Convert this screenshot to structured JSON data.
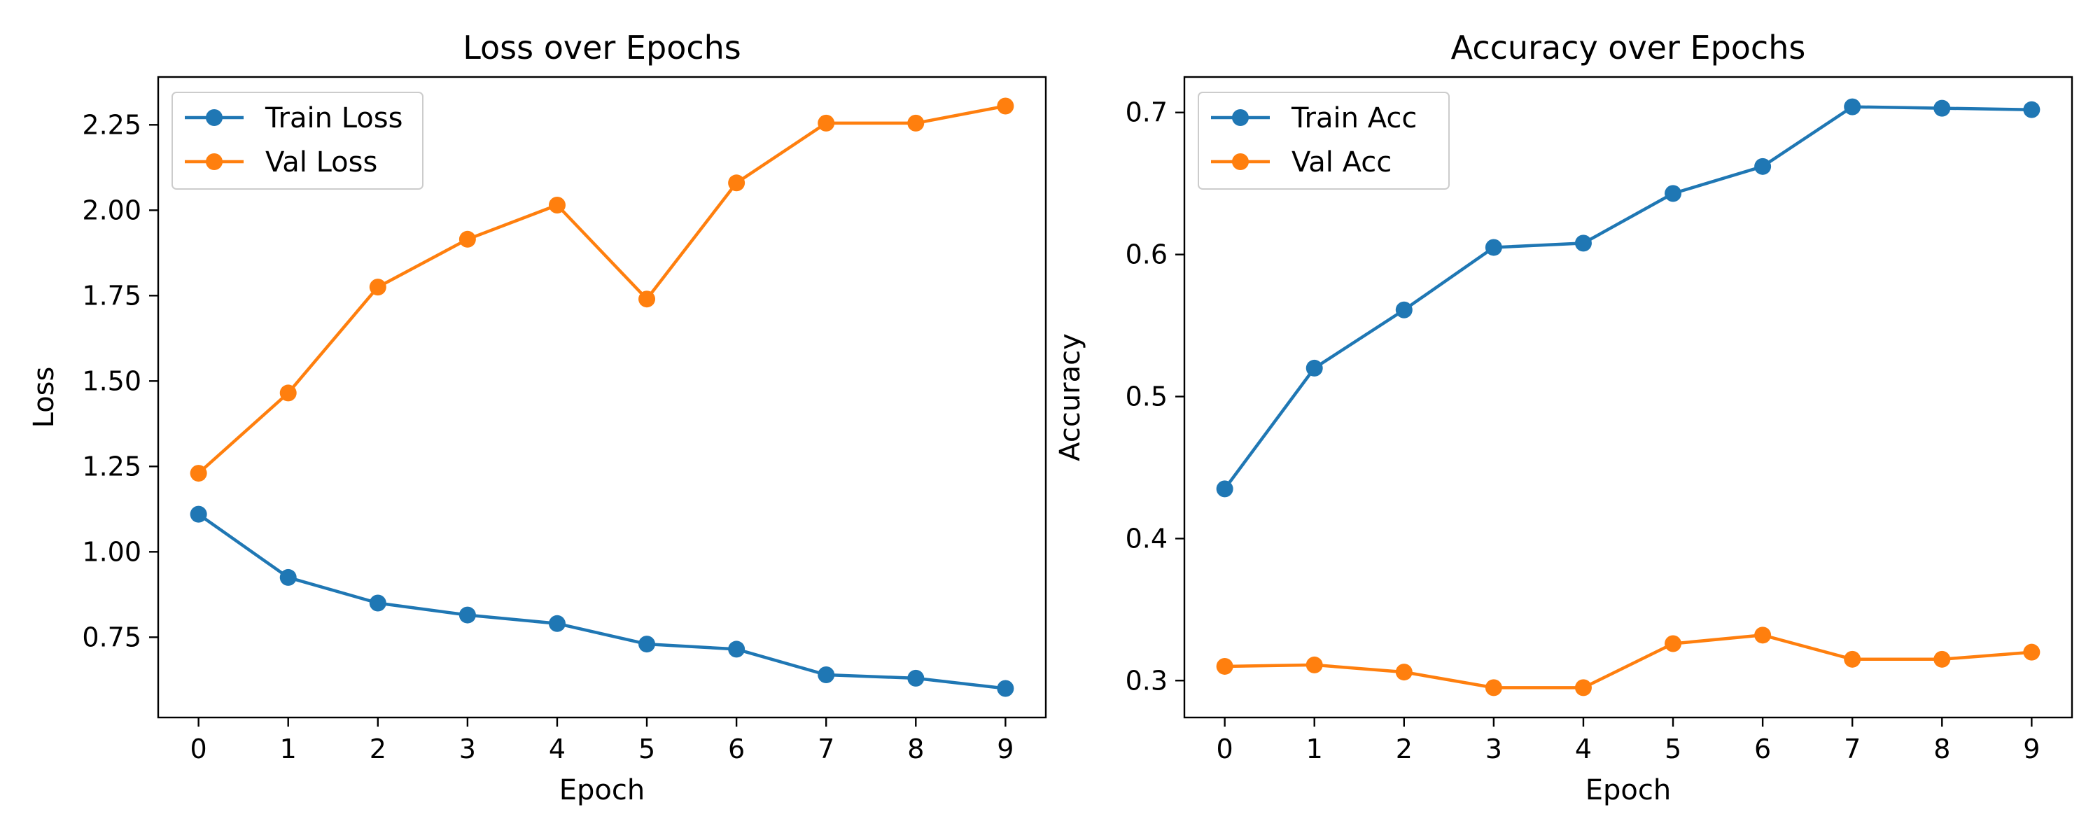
{
  "chart_data": [
    {
      "type": "line",
      "title": "Loss over Epochs",
      "xlabel": "Epoch",
      "ylabel": "Loss",
      "x": [
        0,
        1,
        2,
        3,
        4,
        5,
        6,
        7,
        8,
        9
      ],
      "xticks": [
        0,
        1,
        2,
        3,
        4,
        5,
        6,
        7,
        8,
        9
      ],
      "yticks": [
        0.75,
        1.0,
        1.25,
        1.5,
        1.75,
        2.0,
        2.25
      ],
      "ytick_decimals": 2,
      "xlim": [
        -0.45,
        9.45
      ],
      "ylim": [
        0.515,
        2.39
      ],
      "grid": false,
      "legend": "top-left",
      "series": [
        {
          "name": "Train Loss",
          "color": "#1f77b4",
          "values": [
            1.11,
            0.925,
            0.85,
            0.815,
            0.79,
            0.73,
            0.715,
            0.64,
            0.63,
            0.6
          ]
        },
        {
          "name": "Val Loss",
          "color": "#ff7f0e",
          "values": [
            1.23,
            1.465,
            1.775,
            1.915,
            2.015,
            1.74,
            2.08,
            2.255,
            2.255,
            2.305
          ]
        }
      ]
    },
    {
      "type": "line",
      "title": "Accuracy over Epochs",
      "xlabel": "Epoch",
      "ylabel": "Accuracy",
      "x": [
        0,
        1,
        2,
        3,
        4,
        5,
        6,
        7,
        8,
        9
      ],
      "xticks": [
        0,
        1,
        2,
        3,
        4,
        5,
        6,
        7,
        8,
        9
      ],
      "yticks": [
        0.3,
        0.4,
        0.5,
        0.6,
        0.7
      ],
      "ytick_decimals": 1,
      "xlim": [
        -0.45,
        9.45
      ],
      "ylim": [
        0.274,
        0.725
      ],
      "grid": false,
      "legend": "top-left",
      "series": [
        {
          "name": "Train Acc",
          "color": "#1f77b4",
          "values": [
            0.435,
            0.52,
            0.561,
            0.605,
            0.608,
            0.643,
            0.662,
            0.704,
            0.703,
            0.702
          ]
        },
        {
          "name": "Val Acc",
          "color": "#ff7f0e",
          "values": [
            0.31,
            0.311,
            0.306,
            0.295,
            0.295,
            0.326,
            0.332,
            0.315,
            0.315,
            0.32
          ]
        }
      ]
    }
  ]
}
